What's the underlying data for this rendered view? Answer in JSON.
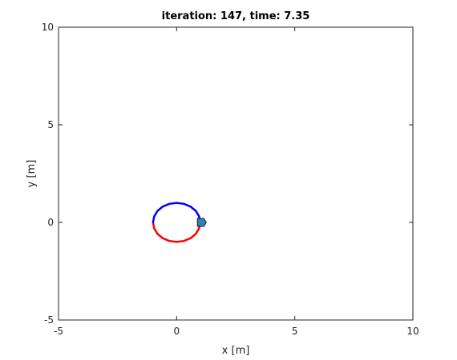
{
  "chart_data": {
    "type": "line",
    "title": "iteration: 147, time: 7.35",
    "xlabel": "x [m]",
    "ylabel": "y [m]",
    "xlim": [
      -5,
      10
    ],
    "ylim": [
      -5,
      10
    ],
    "xticks": [
      "-5",
      "0",
      "5",
      "10"
    ],
    "yticks": [
      "-5",
      "0",
      "5",
      "10"
    ],
    "grid": false,
    "series": [
      {
        "color": "#ff0000",
        "x": [
          1.0,
          0.95,
          0.81,
          0.59,
          0.31,
          0.0,
          -0.31,
          -0.59,
          -0.81,
          -0.95,
          -1.0
        ],
        "y": [
          0.0,
          -0.31,
          -0.59,
          -0.81,
          -0.95,
          -1.0,
          -0.95,
          -0.81,
          -0.59,
          -0.31,
          0.0
        ]
      },
      {
        "color": "#0000ff",
        "x": [
          -1.0,
          -0.95,
          -0.81,
          -0.59,
          -0.31,
          0.0,
          0.31,
          0.59,
          0.81,
          0.95,
          1.0
        ],
        "y": [
          0.0,
          0.31,
          0.59,
          0.81,
          0.95,
          1.0,
          0.95,
          0.81,
          0.59,
          0.31,
          0.0
        ]
      }
    ],
    "robot": {
      "x": 1.05,
      "y": 0.0,
      "color": "#2f7fb8"
    }
  }
}
